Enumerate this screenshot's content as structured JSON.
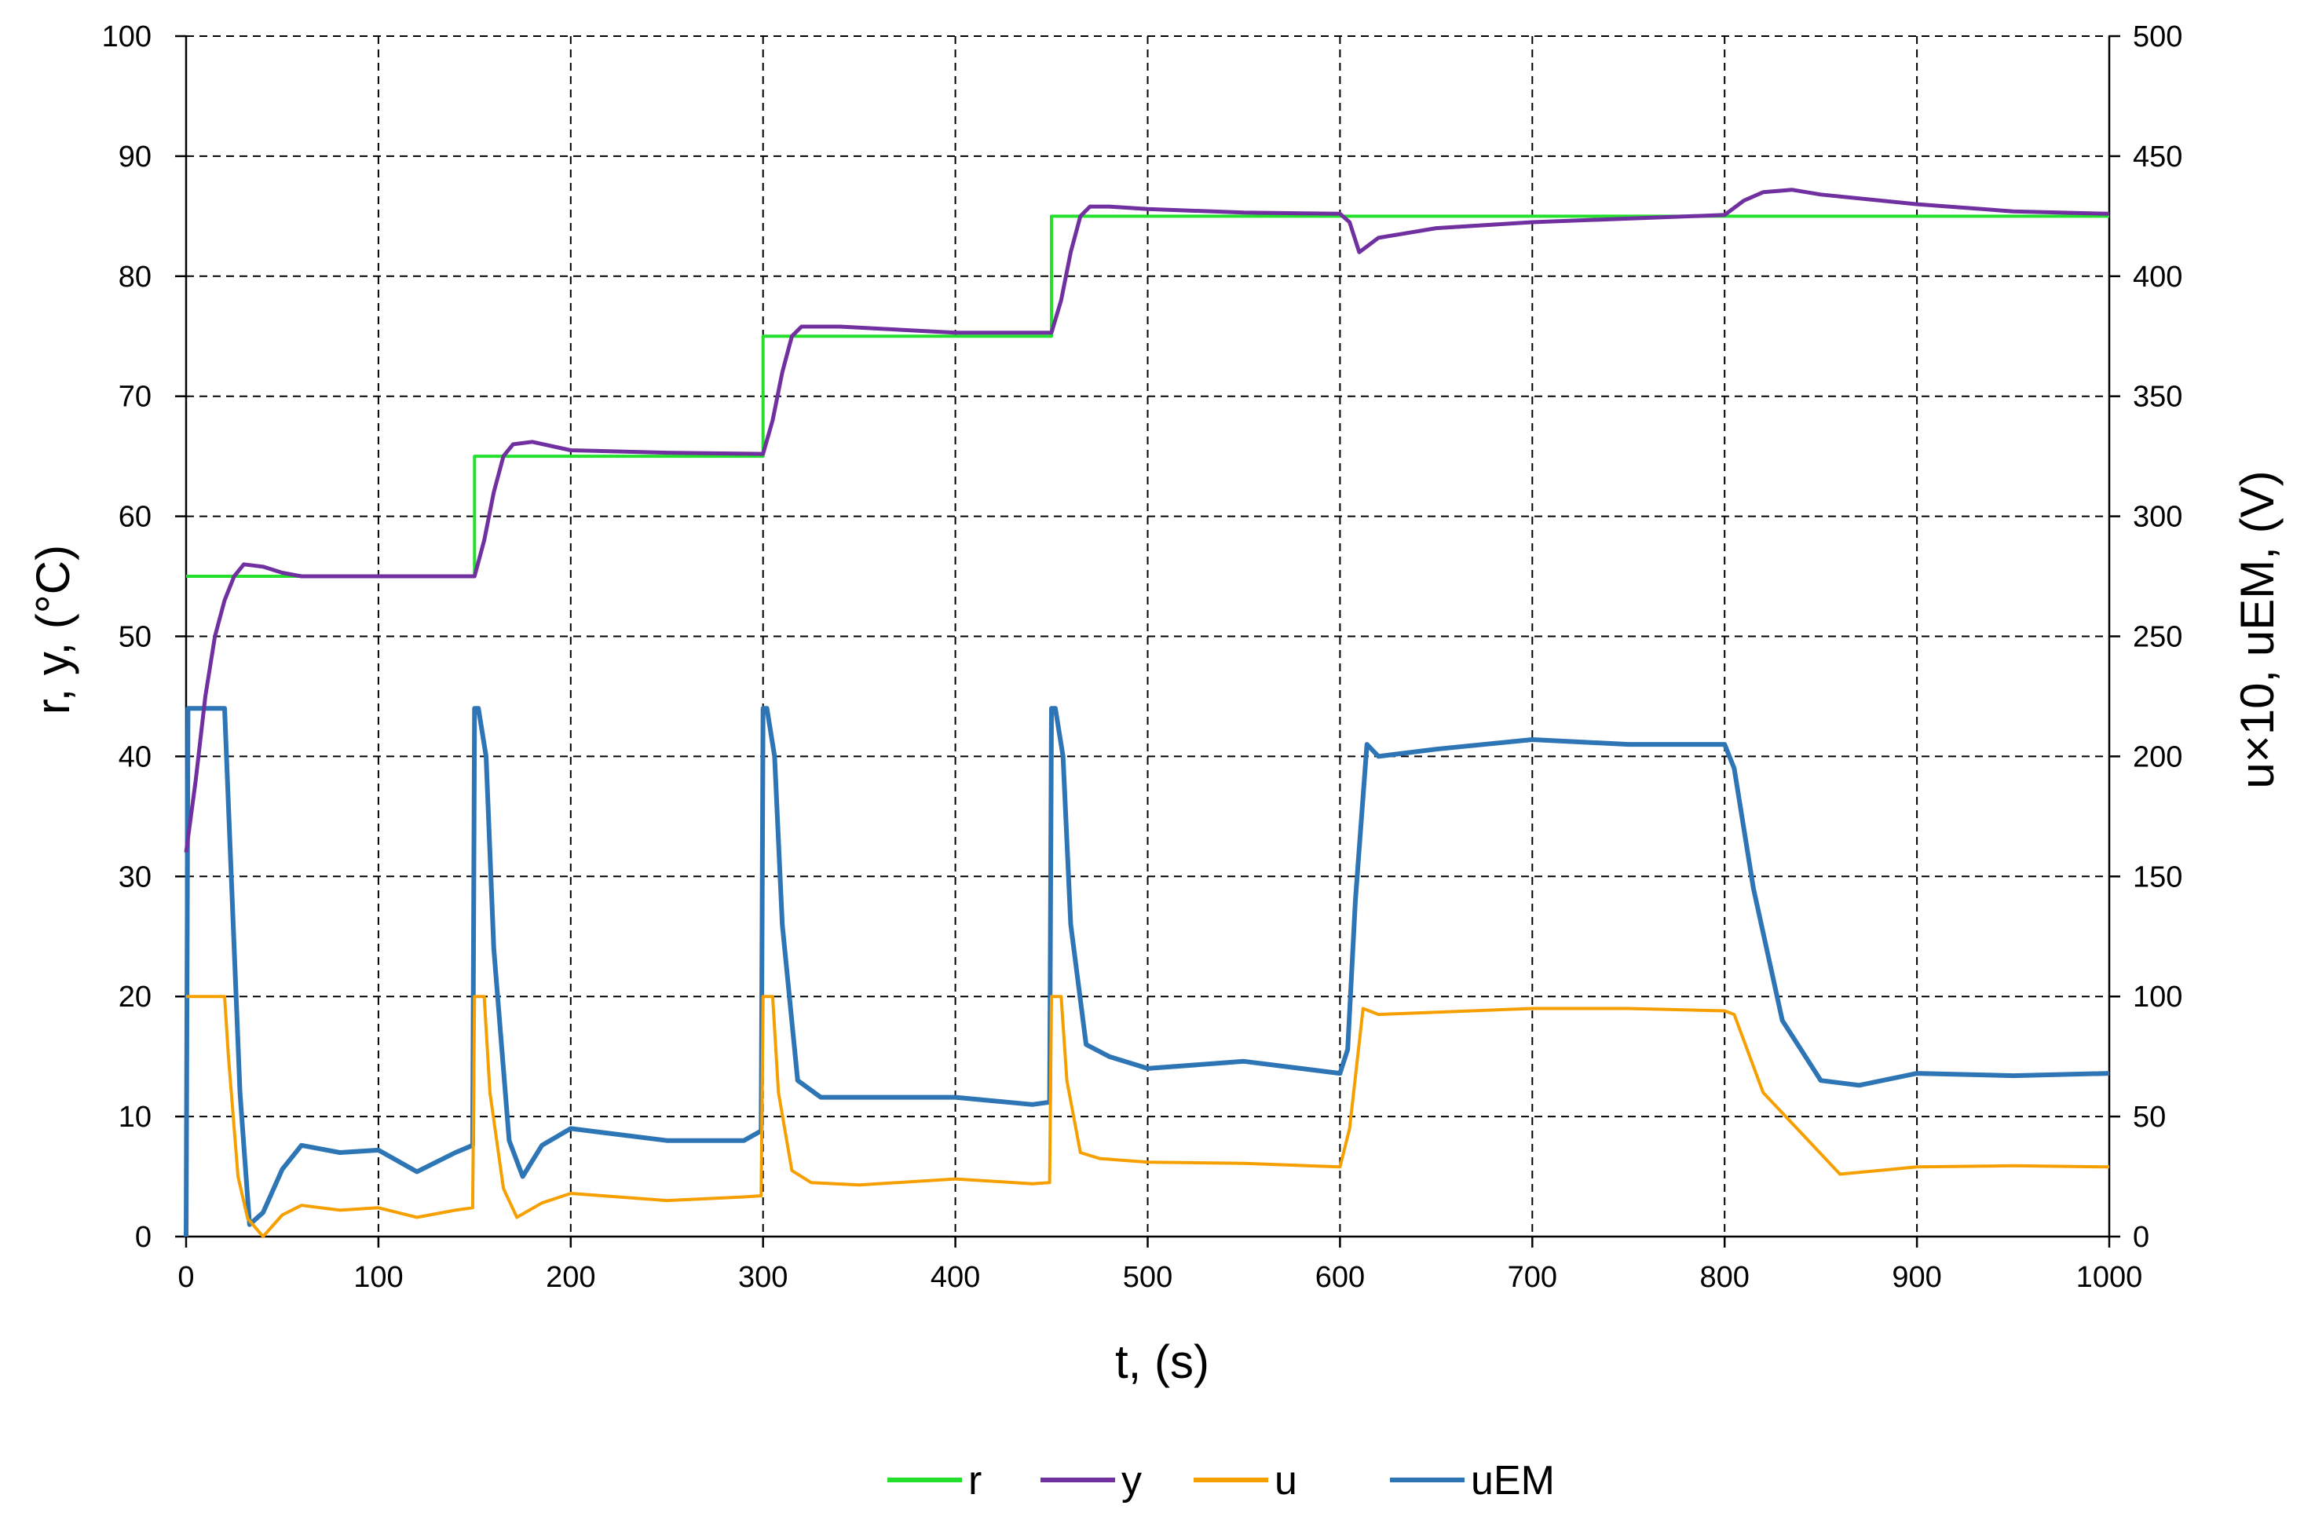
{
  "chart_data": {
    "type": "line",
    "title": "",
    "xlabel": "t, (s)",
    "ylabel_left": "r, y, (°C)",
    "ylabel_right": "u×10, uEM, (V)",
    "xlim": [
      0,
      1000
    ],
    "ylim_left": [
      0,
      100
    ],
    "ylim_right": [
      0,
      500
    ],
    "x_ticks": [
      0,
      100,
      200,
      300,
      400,
      500,
      600,
      700,
      800,
      900,
      1000
    ],
    "y_left_ticks": [
      0,
      10,
      20,
      30,
      40,
      50,
      60,
      70,
      80,
      90,
      100
    ],
    "y_right_ticks": [
      0,
      50,
      100,
      150,
      200,
      250,
      300,
      350,
      400,
      450,
      500
    ],
    "grid": "dashed",
    "legend_position": "bottom",
    "colors": {
      "r": "#22e02c",
      "y": "#7030a0",
      "u": "#f5a000",
      "uEM": "#2e75b6"
    },
    "series": [
      {
        "name": "r",
        "axis": "left",
        "x": [
          0,
          150,
          150,
          300,
          300,
          450,
          450,
          1000
        ],
        "values": [
          55,
          55,
          65,
          65,
          75,
          75,
          85,
          85
        ]
      },
      {
        "name": "y",
        "axis": "left",
        "x": [
          0,
          5,
          10,
          15,
          20,
          25,
          30,
          40,
          50,
          60,
          80,
          100,
          120,
          140,
          150,
          155,
          160,
          165,
          170,
          180,
          200,
          250,
          300,
          305,
          310,
          315,
          320,
          340,
          400,
          450,
          455,
          460,
          465,
          470,
          480,
          500,
          550,
          600,
          605,
          610,
          620,
          650,
          700,
          750,
          800,
          810,
          820,
          835,
          850,
          900,
          950,
          1000
        ],
        "values": [
          32,
          38,
          45,
          50,
          53,
          55,
          56,
          55.8,
          55.3,
          55,
          55,
          55,
          55,
          55,
          55,
          58,
          62,
          65,
          66,
          66.2,
          65.5,
          65.3,
          65.2,
          68,
          72,
          75,
          75.8,
          75.8,
          75.3,
          75.3,
          78,
          82,
          85,
          85.8,
          85.8,
          85.6,
          85.3,
          85.2,
          84.5,
          82,
          83.2,
          84,
          84.5,
          84.8,
          85.1,
          86.3,
          87,
          87.2,
          86.8,
          86,
          85.4,
          85.2
        ]
      },
      {
        "name": "u",
        "axis": "left",
        "x": [
          0,
          20,
          22,
          27,
          32,
          40,
          50,
          60,
          80,
          100,
          120,
          140,
          149,
          150,
          155,
          158,
          165,
          172,
          185,
          200,
          250,
          290,
          299,
          300,
          305,
          308,
          315,
          325,
          350,
          400,
          440,
          449,
          450,
          455,
          458,
          465,
          475,
          500,
          550,
          600,
          605,
          612,
          620,
          700,
          750,
          800,
          805,
          820,
          860,
          900,
          950,
          1000
        ],
        "values": [
          20,
          20,
          15,
          5,
          1.5,
          0,
          1.8,
          2.6,
          2.2,
          2.4,
          1.6,
          2.2,
          2.4,
          20,
          20,
          12,
          4,
          1.6,
          2.8,
          3.6,
          3,
          3.3,
          3.4,
          20,
          20,
          12,
          5.5,
          4.5,
          4.3,
          4.8,
          4.4,
          4.5,
          20,
          20,
          13,
          7,
          6.5,
          6.2,
          6.1,
          5.8,
          9,
          19,
          18.5,
          19,
          19,
          18.8,
          18.5,
          12,
          5.2,
          5.8,
          5.9,
          5.8
        ]
      },
      {
        "name": "uEM",
        "axis": "right",
        "x": [
          0,
          1,
          20,
          23,
          28,
          33,
          40,
          50,
          60,
          80,
          100,
          120,
          140,
          149,
          150,
          152,
          156,
          160,
          168,
          175,
          185,
          200,
          250,
          290,
          299,
          300,
          302,
          306,
          310,
          318,
          330,
          350,
          400,
          440,
          449,
          450,
          452,
          456,
          460,
          468,
          480,
          500,
          550,
          600,
          604,
          608,
          614,
          620,
          650,
          700,
          750,
          800,
          805,
          815,
          830,
          850,
          870,
          900,
          950,
          1000
        ],
        "values": [
          0,
          220,
          220,
          160,
          60,
          5,
          10,
          28,
          38,
          35,
          36,
          27,
          35,
          38,
          220,
          220,
          200,
          120,
          40,
          25,
          38,
          45,
          40,
          40,
          44,
          220,
          220,
          200,
          130,
          65,
          58,
          58,
          58,
          55,
          56,
          220,
          220,
          200,
          130,
          80,
          75,
          70,
          73,
          68,
          78,
          140,
          205,
          200,
          203,
          207,
          205,
          205,
          195,
          145,
          90,
          65,
          63,
          68,
          67,
          68
        ]
      }
    ]
  },
  "legend": [
    {
      "label": "r",
      "color": "#22e02c"
    },
    {
      "label": "y",
      "color": "#7030a0"
    },
    {
      "label": "u",
      "color": "#f5a000"
    },
    {
      "label": "uEM",
      "color": "#2e75b6"
    }
  ]
}
